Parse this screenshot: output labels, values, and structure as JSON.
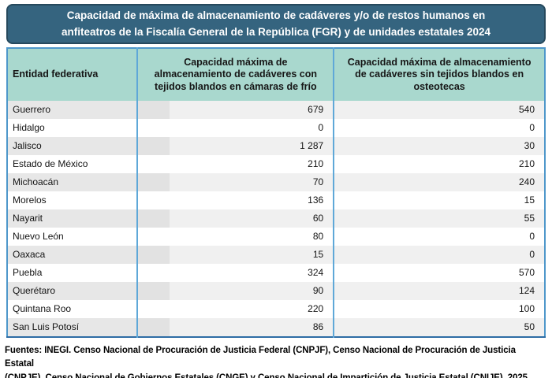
{
  "title": {
    "lines": [
      "Capacidad de máxima de almacenamiento de cadáveres y/o de restos humanos en",
      "anfiteatros de la Fiscalía General de la República (FGR) y de unidades estatales 2024"
    ]
  },
  "chart_data": {
    "type": "table",
    "title": "Capacidad de máxima de almacenamiento de cadáveres y/o de restos humanos en anfiteatros de la Fiscalía General de la República (FGR) y de unidades estatales 2024",
    "columns": [
      "Entidad federativa",
      "Capacidad máxima de almacenamiento de cadáveres con tejidos blandos en cámaras de frío",
      "Capacidad máxima de almacenamiento de cadáveres sin tejidos blandos en osteotecas"
    ],
    "rows": [
      [
        "Guerrero",
        "679",
        "540"
      ],
      [
        "Hidalgo",
        "0",
        "0"
      ],
      [
        "Jalisco",
        "1 287",
        "30"
      ],
      [
        "Estado de México",
        "210",
        "210"
      ],
      [
        "Michoacán",
        "70",
        "240"
      ],
      [
        "Morelos",
        "136",
        "15"
      ],
      [
        "Nayarit",
        "60",
        "55"
      ],
      [
        "Nuevo León",
        "80",
        "0"
      ],
      [
        "Oaxaca",
        "15",
        "0"
      ],
      [
        "Puebla",
        "324",
        "570"
      ],
      [
        "Querétaro",
        "90",
        "124"
      ],
      [
        "Quintana Roo",
        "220",
        "100"
      ],
      [
        "San Luis Potosí",
        "86",
        "50"
      ]
    ],
    "series": [
      {
        "name": "Capacidad máxima de almacenamiento de cadáveres con tejidos blandos en cámaras de frío",
        "values": [
          679,
          0,
          1287,
          210,
          70,
          136,
          60,
          80,
          15,
          324,
          90,
          220,
          86
        ]
      },
      {
        "name": "Capacidad máxima de almacenamiento de cadáveres sin tejidos blandos en osteotecas",
        "values": [
          540,
          0,
          30,
          210,
          240,
          15,
          55,
          0,
          0,
          570,
          124,
          100,
          50
        ]
      }
    ],
    "categories": [
      "Guerrero",
      "Hidalgo",
      "Jalisco",
      "Estado de México",
      "Michoacán",
      "Morelos",
      "Nayarit",
      "Nuevo León",
      "Oaxaca",
      "Puebla",
      "Querétaro",
      "Quintana Roo",
      "San Luis Potosí"
    ]
  },
  "footer": {
    "lines": [
      "Fuentes: INEGI. Censo Nacional de Procuración de Justicia Federal (CNPJF), Censo Nacional de Procuración de Justicia Estatal",
      "(CNPJE), Censo Nacional de Gobiernos Estatales (CNGE) y Censo Nacional de Impartición de Justicia Estatal (CNIJE), 2025."
    ]
  },
  "colors": {
    "banner_background": "#35647f",
    "banner_border": "#26495d",
    "header_teal": "#a9d8ce",
    "table_border_blue": "#4e97ca",
    "divider_blue": "#5fa8d8",
    "stripe_gray": "#f0f0f0",
    "stripe_gray_dark": "#e2e2e2"
  }
}
